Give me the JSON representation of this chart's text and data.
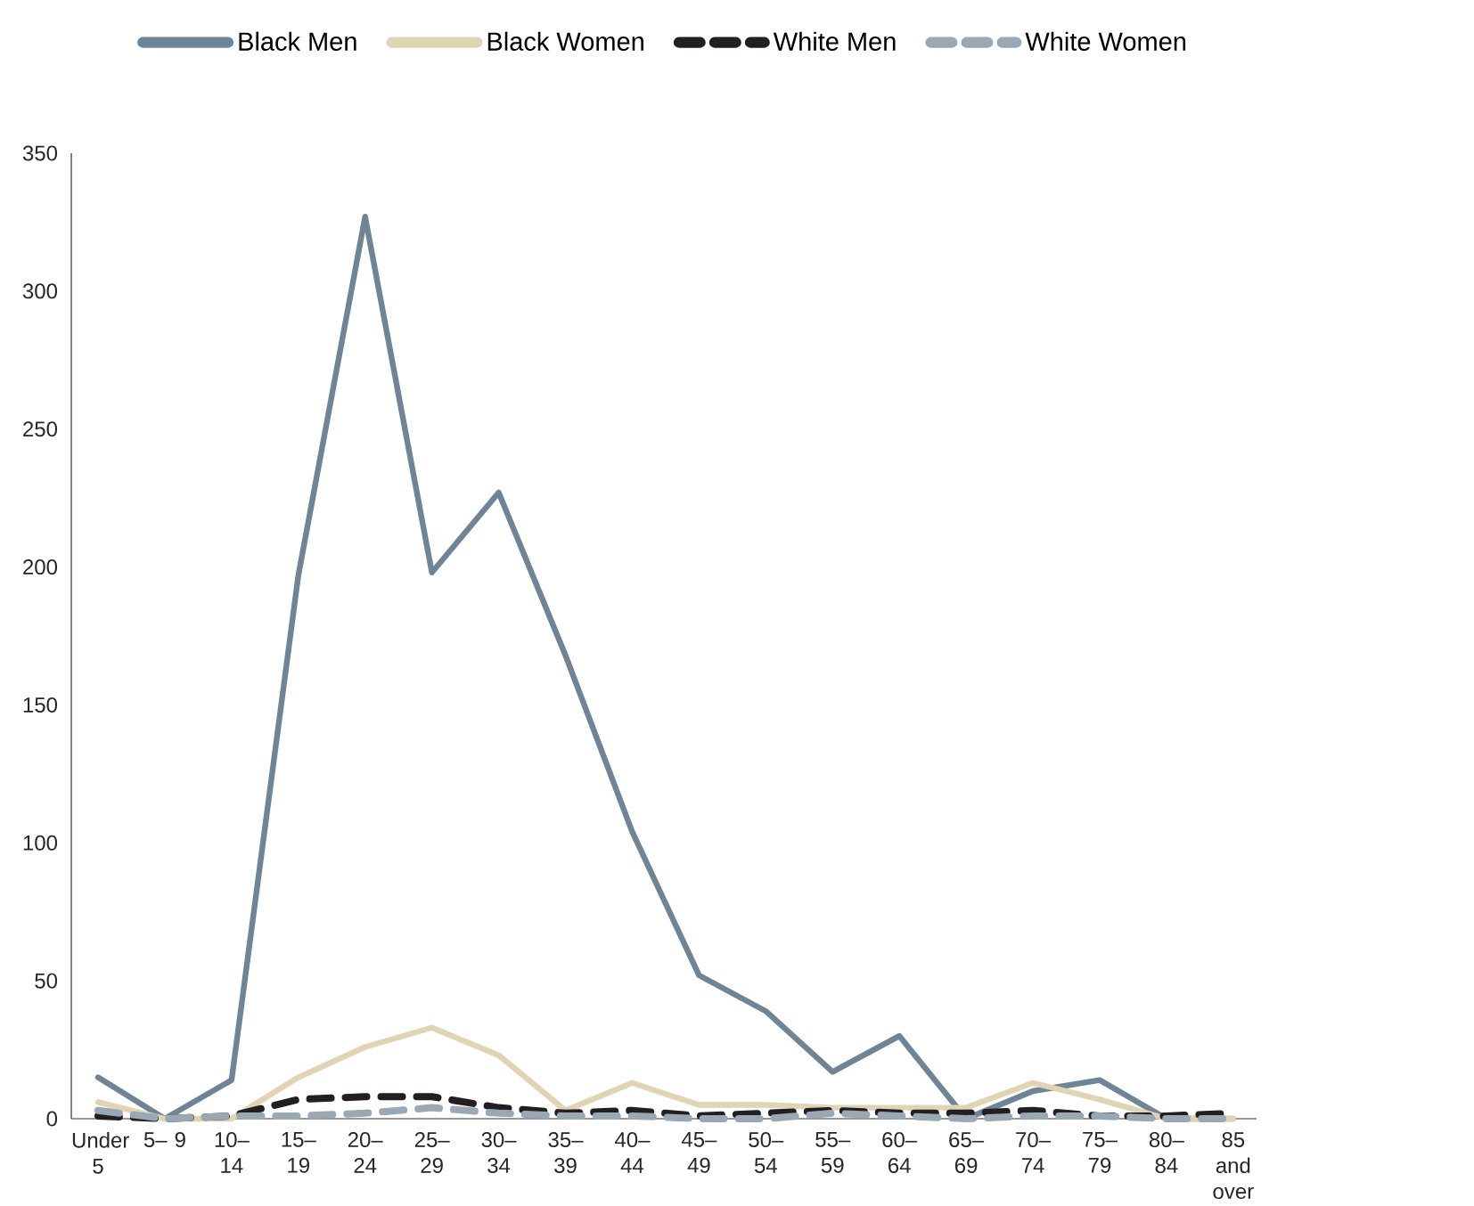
{
  "chart_data": {
    "type": "line",
    "categories": [
      "Under 5",
      "5– 9",
      "10– 14",
      "15– 19",
      "20– 24",
      "25– 29",
      "30– 34",
      "35– 39",
      "40– 44",
      "45– 49",
      "50– 54",
      "55– 59",
      "60– 64",
      "65– 69",
      "70– 74",
      "75– 79",
      "80– 84",
      "85 and over"
    ],
    "series": [
      {
        "name": "Black Men",
        "color": "#6f8596",
        "line_style": "solid",
        "values": [
          15,
          0,
          14,
          197,
          327,
          198,
          227,
          168,
          104,
          52,
          39,
          17,
          30,
          0,
          10,
          14,
          0,
          0
        ]
      },
      {
        "name": "Black Women",
        "color": "#e0d4b4",
        "line_style": "solid",
        "values": [
          6,
          0,
          0,
          15,
          26,
          33,
          23,
          3,
          13,
          5,
          5,
          4,
          4,
          4,
          13,
          7,
          0,
          0
        ]
      },
      {
        "name": "White Men",
        "color": "#231f20",
        "line_style": "dashed",
        "values": [
          1,
          0,
          1,
          7,
          8,
          8,
          4,
          2,
          3,
          1,
          2,
          3,
          2,
          2,
          3,
          1,
          1,
          2
        ]
      },
      {
        "name": "White Women",
        "color": "#9aa8b3",
        "line_style": "dashed",
        "values": [
          3,
          0,
          1,
          1,
          2,
          4,
          2,
          1,
          1,
          0,
          0,
          2,
          1,
          0,
          1,
          1,
          0,
          0
        ]
      }
    ],
    "ylim": [
      0,
      350
    ],
    "yticks": [
      0,
      50,
      100,
      150,
      200,
      250,
      300,
      350
    ],
    "grid": false,
    "legend": "top",
    "marker": "none"
  }
}
